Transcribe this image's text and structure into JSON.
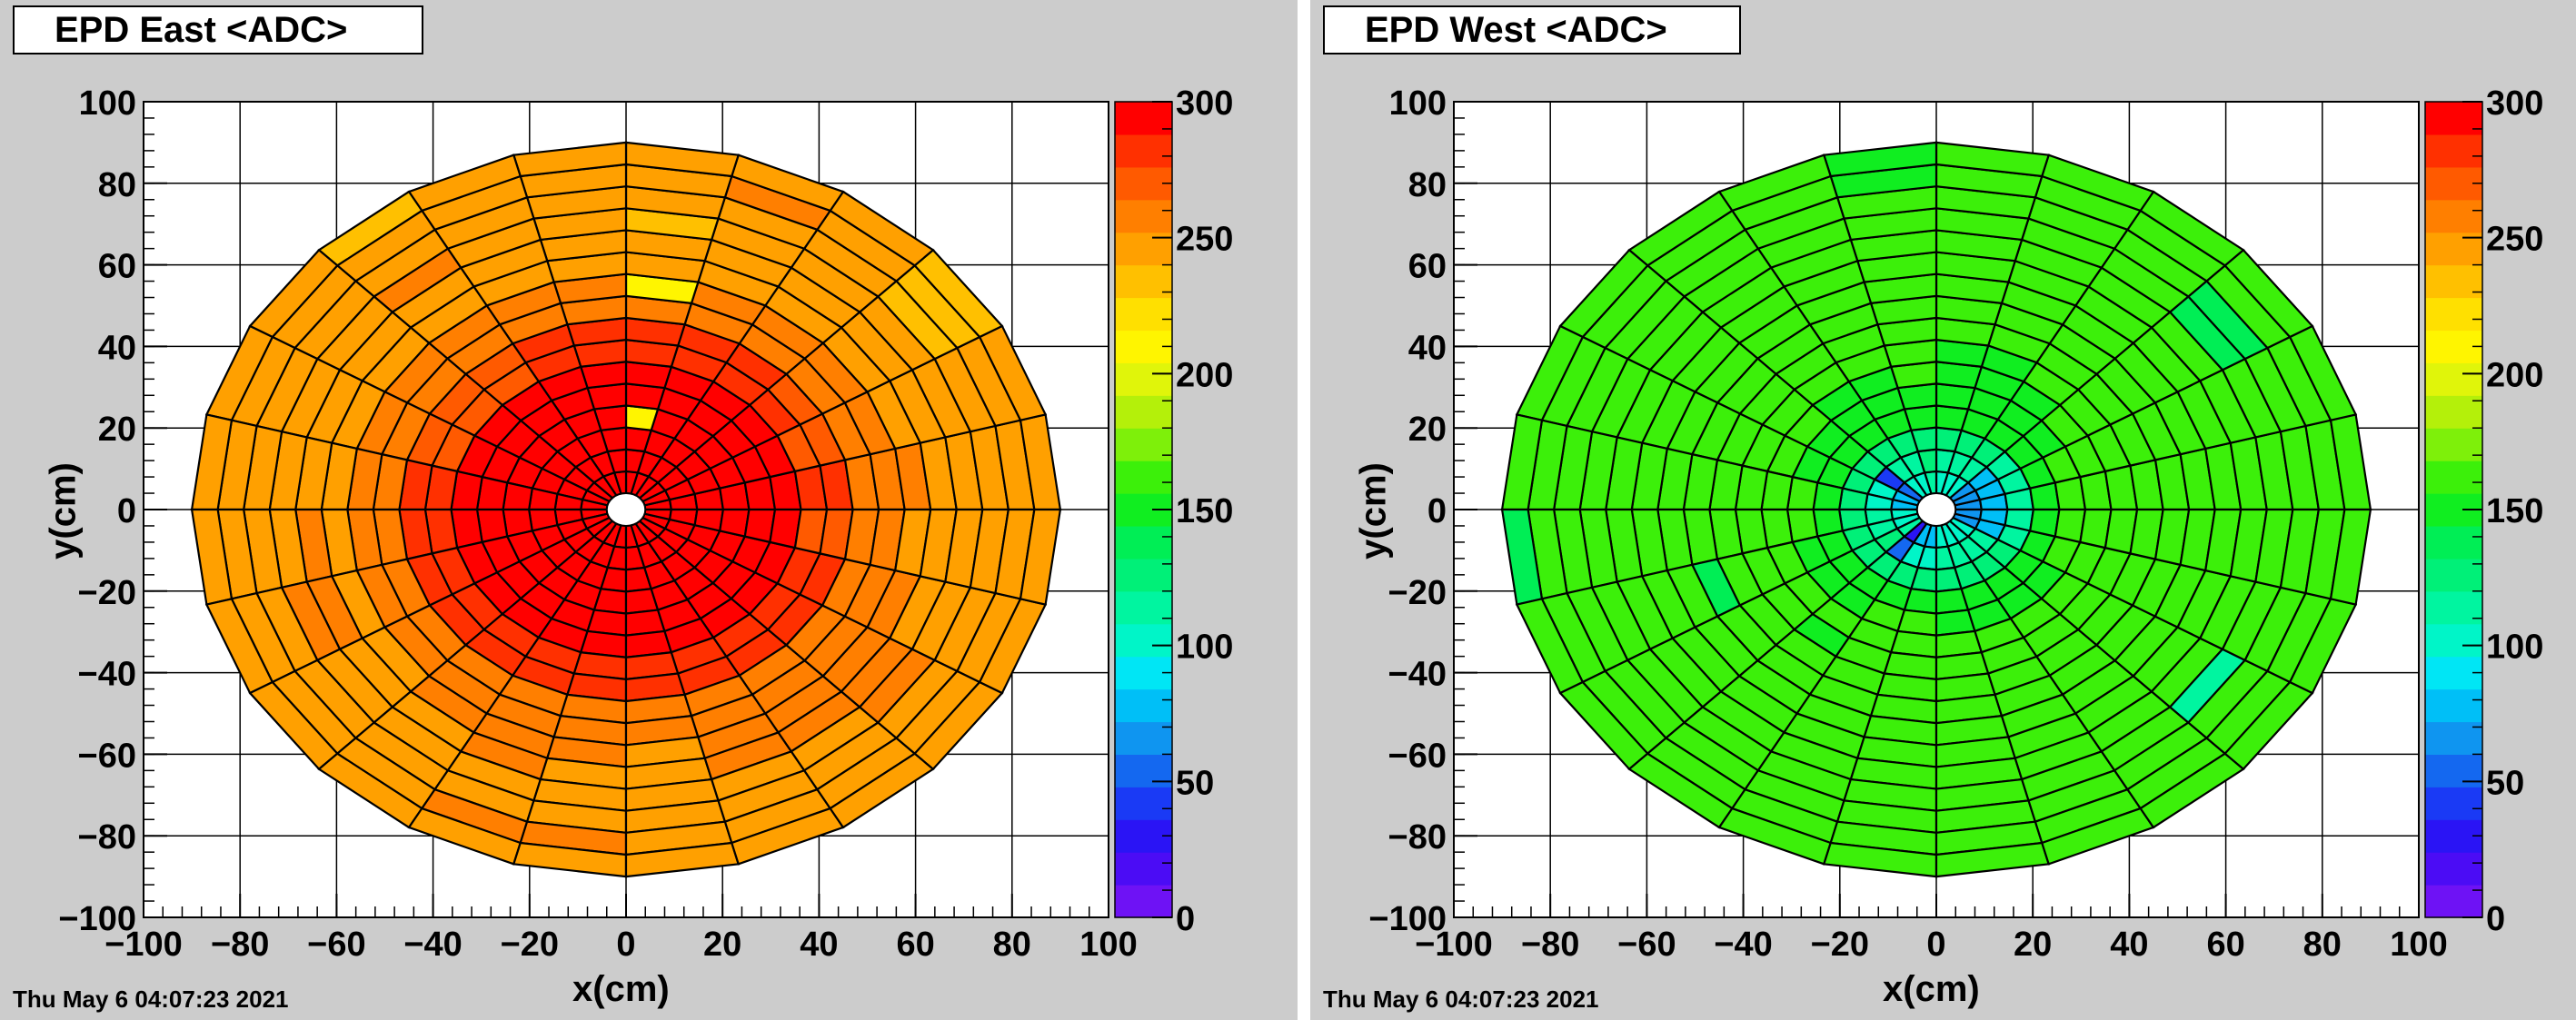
{
  "chart_data": [
    {
      "type": "heatmap",
      "title": "EPD East <ADC>",
      "xlabel": "x(cm)",
      "ylabel": "y(cm)",
      "xlim": [
        -100,
        100
      ],
      "ylim": [
        -100,
        100
      ],
      "x_ticks": [
        -100,
        -80,
        -60,
        -40,
        -20,
        0,
        20,
        40,
        60,
        80,
        100
      ],
      "y_ticks": [
        -100,
        -80,
        -60,
        -40,
        -20,
        0,
        20,
        40,
        60,
        80,
        100
      ],
      "grid": true,
      "colorbar": {
        "min": 0,
        "max": 300,
        "ticks": [
          0,
          50,
          100,
          150,
          200,
          250,
          300
        ]
      },
      "geometry": {
        "rings": 16,
        "sectors": 24,
        "r_inner": 4,
        "r_outer": 90
      },
      "values_by_ring_inner_to_outer": [
        [
          300,
          300,
          300,
          300,
          300,
          300,
          300,
          300,
          300,
          300,
          300,
          300,
          300,
          300,
          300,
          300,
          300,
          300,
          300,
          300,
          300,
          300,
          300,
          300
        ],
        [
          300,
          300,
          300,
          300,
          300,
          300,
          300,
          300,
          300,
          300,
          300,
          300,
          300,
          300,
          300,
          300,
          300,
          300,
          300,
          300,
          300,
          300,
          300,
          300
        ],
        [
          300,
          300,
          300,
          300,
          300,
          300,
          300,
          300,
          300,
          300,
          300,
          300,
          300,
          300,
          300,
          300,
          300,
          300,
          300,
          300,
          300,
          300,
          300,
          300
        ],
        [
          300,
          300,
          300,
          300,
          300,
          215,
          300,
          300,
          300,
          300,
          300,
          300,
          300,
          300,
          300,
          300,
          300,
          300,
          300,
          300,
          300,
          300,
          300,
          300
        ],
        [
          300,
          300,
          300,
          300,
          300,
          300,
          300,
          300,
          300,
          300,
          300,
          300,
          300,
          300,
          300,
          300,
          300,
          300,
          300,
          300,
          300,
          300,
          300,
          300
        ],
        [
          300,
          300,
          300,
          300,
          300,
          300,
          300,
          300,
          300,
          300,
          300,
          300,
          300,
          300,
          300,
          300,
          300,
          300,
          300,
          300,
          300,
          300,
          300,
          300
        ],
        [
          280,
          270,
          280,
          280,
          280,
          280,
          280,
          280,
          270,
          270,
          270,
          280,
          280,
          280,
          280,
          280,
          280,
          280,
          280,
          280,
          280,
          280,
          280,
          270
        ],
        [
          280,
          270,
          270,
          280,
          280,
          280,
          280,
          280,
          270,
          270,
          270,
          280,
          280,
          280,
          280,
          280,
          280,
          280,
          280,
          280,
          280,
          280,
          280,
          270
        ],
        [
          260,
          260,
          260,
          260,
          260,
          260,
          260,
          260,
          260,
          260,
          260,
          260,
          260,
          260,
          260,
          260,
          260,
          260,
          260,
          260,
          260,
          260,
          260,
          260
        ],
        [
          260,
          260,
          255,
          255,
          260,
          215,
          260,
          255,
          255,
          260,
          260,
          260,
          260,
          260,
          260,
          260,
          260,
          260,
          260,
          260,
          260,
          260,
          260,
          260
        ],
        [
          260,
          245,
          245,
          245,
          245,
          245,
          245,
          245,
          245,
          245,
          245,
          245,
          245,
          245,
          245,
          260,
          260,
          260,
          245,
          260,
          260,
          260,
          260,
          245
        ],
        [
          245,
          245,
          245,
          245,
          245,
          245,
          245,
          245,
          245,
          245,
          245,
          245,
          260,
          260,
          245,
          245,
          260,
          245,
          245,
          260,
          260,
          260,
          245,
          245
        ],
        [
          245,
          245,
          245,
          245,
          245,
          230,
          245,
          245,
          260,
          245,
          245,
          245,
          245,
          260,
          245,
          245,
          245,
          245,
          245,
          245,
          245,
          260,
          245,
          245
        ],
        [
          245,
          245,
          230,
          245,
          245,
          245,
          245,
          245,
          245,
          245,
          245,
          245,
          245,
          245,
          245,
          245,
          245,
          245,
          245,
          245,
          245,
          245,
          245,
          245
        ],
        [
          245,
          245,
          230,
          245,
          260,
          245,
          245,
          245,
          245,
          245,
          245,
          245,
          245,
          245,
          245,
          245,
          260,
          260,
          245,
          245,
          245,
          245,
          245,
          245
        ],
        [
          245,
          245,
          230,
          245,
          245,
          245,
          245,
          245,
          230,
          245,
          245,
          245,
          245,
          245,
          245,
          245,
          245,
          245,
          245,
          245,
          245,
          245,
          245,
          245
        ]
      ]
    },
    {
      "type": "heatmap",
      "title": "EPD West <ADC>",
      "xlabel": "x(cm)",
      "ylabel": "y(cm)",
      "xlim": [
        -100,
        100
      ],
      "ylim": [
        -100,
        100
      ],
      "x_ticks": [
        -100,
        -80,
        -60,
        -40,
        -20,
        0,
        20,
        40,
        60,
        80,
        100
      ],
      "y_ticks": [
        -100,
        -80,
        -60,
        -40,
        -20,
        0,
        20,
        40,
        60,
        80,
        100
      ],
      "grid": true,
      "colorbar": {
        "min": 0,
        "max": 300,
        "ticks": [
          0,
          50,
          100,
          150,
          200,
          250,
          300
        ]
      },
      "geometry": {
        "rings": 16,
        "sectors": 24,
        "r_inner": 4,
        "r_outer": 90
      },
      "values_by_ring_inner_to_outer": [
        [
          70,
          70,
          70,
          100,
          100,
          100,
          110,
          100,
          100,
          50,
          80,
          80,
          100,
          100,
          110,
          30,
          80,
          80,
          100,
          100,
          100,
          100,
          70,
          70
        ],
        [
          80,
          80,
          80,
          110,
          110,
          110,
          120,
          110,
          110,
          40,
          100,
          100,
          110,
          110,
          120,
          50,
          100,
          100,
          110,
          110,
          110,
          110,
          80,
          80
        ],
        [
          110,
          110,
          110,
          130,
          130,
          130,
          130,
          130,
          130,
          120,
          120,
          120,
          130,
          130,
          130,
          130,
          130,
          130,
          130,
          130,
          130,
          130,
          110,
          110
        ],
        [
          150,
          150,
          150,
          150,
          150,
          150,
          150,
          150,
          150,
          150,
          150,
          150,
          150,
          150,
          150,
          150,
          150,
          150,
          150,
          150,
          150,
          150,
          150,
          150
        ],
        [
          160,
          160,
          150,
          150,
          150,
          150,
          150,
          150,
          150,
          150,
          150,
          160,
          160,
          150,
          150,
          150,
          160,
          160,
          150,
          150,
          150,
          150,
          160,
          160
        ],
        [
          160,
          160,
          160,
          150,
          150,
          150,
          160,
          150,
          150,
          160,
          160,
          160,
          160,
          160,
          160,
          160,
          160,
          160,
          160,
          160,
          160,
          160,
          160,
          160
        ],
        [
          160,
          160,
          160,
          160,
          150,
          150,
          160,
          160,
          160,
          160,
          160,
          160,
          160,
          160,
          160,
          150,
          160,
          160,
          160,
          160,
          160,
          160,
          160,
          160
        ],
        [
          160,
          160,
          160,
          160,
          160,
          160,
          160,
          160,
          160,
          160,
          160,
          160,
          160,
          160,
          160,
          160,
          160,
          160,
          160,
          160,
          160,
          160,
          160,
          160
        ],
        [
          160,
          160,
          160,
          160,
          160,
          160,
          160,
          160,
          160,
          160,
          160,
          160,
          160,
          135,
          160,
          160,
          160,
          160,
          160,
          160,
          160,
          160,
          160,
          160
        ],
        [
          160,
          160,
          160,
          160,
          160,
          160,
          160,
          160,
          160,
          160,
          160,
          160,
          160,
          160,
          160,
          160,
          160,
          160,
          160,
          160,
          160,
          160,
          160,
          160
        ],
        [
          160,
          160,
          160,
          160,
          160,
          160,
          160,
          160,
          160,
          160,
          160,
          160,
          160,
          160,
          160,
          160,
          160,
          160,
          160,
          160,
          160,
          160,
          160,
          160
        ],
        [
          160,
          160,
          160,
          160,
          160,
          160,
          160,
          160,
          160,
          160,
          160,
          160,
          160,
          160,
          160,
          160,
          160,
          160,
          160,
          160,
          160,
          160,
          160,
          160
        ],
        [
          160,
          160,
          140,
          160,
          160,
          160,
          160,
          160,
          160,
          160,
          160,
          160,
          160,
          160,
          160,
          160,
          160,
          160,
          160,
          160,
          160,
          110,
          160,
          160
        ],
        [
          160,
          160,
          140,
          160,
          160,
          160,
          160,
          160,
          160,
          160,
          160,
          160,
          160,
          160,
          160,
          160,
          160,
          160,
          160,
          160,
          160,
          160,
          160,
          160
        ],
        [
          160,
          160,
          160,
          160,
          160,
          160,
          150,
          160,
          160,
          160,
          160,
          160,
          160,
          160,
          160,
          160,
          160,
          160,
          160,
          160,
          160,
          160,
          160,
          160
        ],
        [
          160,
          160,
          160,
          160,
          160,
          160,
          150,
          160,
          160,
          160,
          160,
          160,
          140,
          160,
          160,
          160,
          160,
          160,
          160,
          160,
          160,
          160,
          160,
          160
        ]
      ]
    }
  ],
  "panels": [
    {
      "title": "EPD East <ADC>",
      "timestamp": "Thu May  6 04:07:23 2021",
      "xlabel": "x(cm)",
      "ylabel": "y(cm)"
    },
    {
      "title": "EPD West <ADC>",
      "timestamp": "Thu May  6 04:07:23 2021",
      "xlabel": "x(cm)",
      "ylabel": "y(cm)"
    }
  ],
  "palette": [
    "#6e12f5",
    "#4b0cf5",
    "#2a14f5",
    "#1a3af5",
    "#1468f0",
    "#0f95f0",
    "#00bff7",
    "#00e6f5",
    "#00f5c8",
    "#00f5a0",
    "#00f078",
    "#00ee55",
    "#10ee20",
    "#3cf00a",
    "#7ef00a",
    "#b4f00a",
    "#e0f50a",
    "#fff500",
    "#ffe000",
    "#ffc000",
    "#ffa000",
    "#ff7f00",
    "#ff5a00",
    "#ff3000",
    "#ff0000"
  ]
}
